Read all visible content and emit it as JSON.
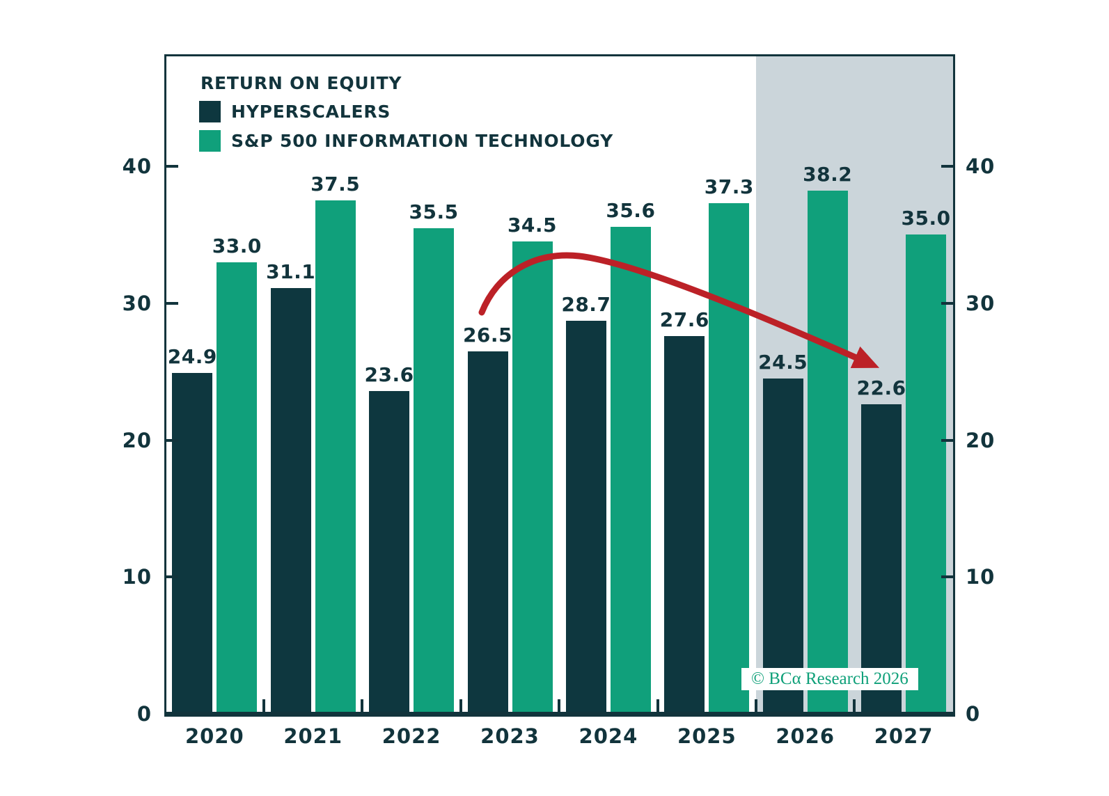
{
  "chart_data": {
    "type": "bar",
    "title": "RETURN ON EQUITY",
    "categories": [
      "2020",
      "2021",
      "2022",
      "2023",
      "2024",
      "2025",
      "2026",
      "2027"
    ],
    "series": [
      {
        "name": "HYPERSCALERS",
        "color": "#0e373f",
        "values": [
          24.9,
          31.1,
          23.6,
          26.5,
          28.7,
          27.6,
          24.5,
          22.6
        ]
      },
      {
        "name": "S&P 500 INFORMATION TECHNOLOGY",
        "color": "#10a07b",
        "values": [
          33.0,
          37.5,
          35.5,
          34.5,
          35.6,
          37.3,
          38.2,
          35.0
        ]
      }
    ],
    "value_label_format": "one decimal place above each bar",
    "xlabel": "",
    "ylabel": "",
    "y_ticks": [
      0,
      10,
      20,
      30,
      40
    ],
    "ylim": [
      0,
      48.2
    ],
    "dual_y_axis": true,
    "grid": false,
    "legend_position": "top-left inside plot",
    "forecast_region": {
      "categories": [
        "2026",
        "2027"
      ],
      "fill": "#cbd5da"
    },
    "annotation_arrow": {
      "color": "#bc2127"
    },
    "watermark": "© BCα Research 2026"
  },
  "colors": {
    "axis_and_text": "#12343c",
    "hyperscalers_bar": "#0e373f",
    "sp500_it_bar": "#10a07b",
    "forecast_shade": "#cbd5da",
    "arrow_red": "#bc2127",
    "watermark_green": "#0fa079",
    "background": "#ffffff"
  }
}
